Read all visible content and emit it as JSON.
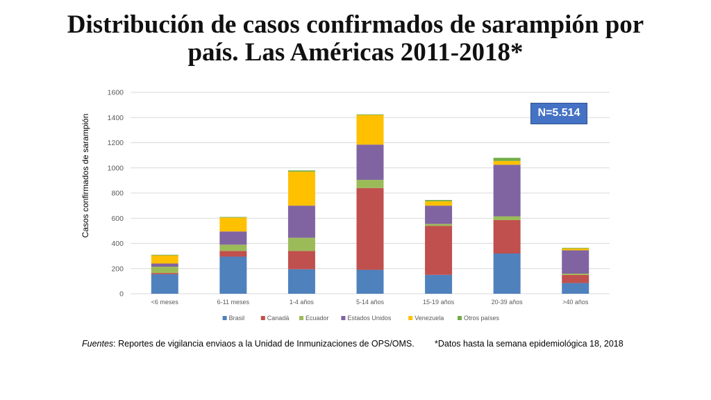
{
  "title_line1": "Distribución de casos confirmados de sarampión por",
  "title_line2": "país. Las Américas 2011-2018*",
  "annotation": "N=5.514",
  "footnote_source_label": "Fuentes",
  "footnote_source_text": ": Reportes de vigilancia enviaos a la Unidad de Inmunizaciones de OPS/OMS.",
  "footnote_date": "*Datos hasta la semana epidemiológica 18, 2018",
  "chart_data": {
    "type": "bar",
    "stacked": true,
    "title": "Distribución de casos confirmados de sarampión por país. Las Américas 2011-2018*",
    "ylabel": "Casos confirmados de sarampión",
    "xlabel": "",
    "ylim": [
      0,
      1600
    ],
    "yticks": [
      0,
      200,
      400,
      600,
      800,
      1000,
      1200,
      1400,
      1600
    ],
    "grid": true,
    "legend_position": "bottom",
    "categories": [
      "<6 meses",
      "6-11 meses",
      "1-4 años",
      "5-14 años",
      "15-19 años",
      "20-39 años",
      ">40 años"
    ],
    "series": [
      {
        "name": "Brasil",
        "color": "#4f81bd",
        "values": [
          155,
          295,
          195,
          190,
          150,
          320,
          85
        ]
      },
      {
        "name": "Canadá",
        "color": "#c0504d",
        "values": [
          10,
          45,
          145,
          650,
          390,
          265,
          65
        ]
      },
      {
        "name": "Ecuador",
        "color": "#9bbb59",
        "values": [
          50,
          50,
          105,
          65,
          15,
          30,
          10
        ]
      },
      {
        "name": "Estados Unidos",
        "color": "#8064a2",
        "values": [
          25,
          105,
          255,
          280,
          145,
          410,
          185
        ]
      },
      {
        "name": "Venezuela",
        "color": "#ffc000",
        "values": [
          65,
          110,
          270,
          235,
          35,
          30,
          15
        ]
      },
      {
        "name": "Otros países",
        "color": "#70ad47",
        "values": [
          5,
          5,
          10,
          5,
          10,
          25,
          5
        ]
      }
    ]
  }
}
